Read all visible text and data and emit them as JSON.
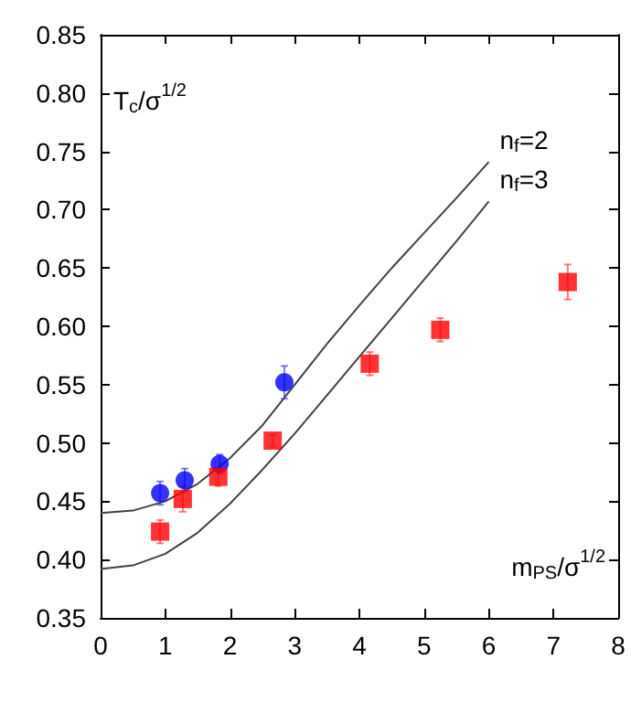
{
  "chart_data": {
    "type": "scatter",
    "xlabel": "m$_{PS}$/σ$^{1/2}$",
    "ylabel": "T$_{c}$/σ$^{1/2}$",
    "xlim": [
      0,
      8
    ],
    "xticks": [
      0,
      1,
      2,
      3,
      4,
      5,
      6,
      7,
      8
    ],
    "ylim": [
      0.35,
      0.85
    ],
    "yticks": [
      0.35,
      {
        "value": 0.4,
        "label": "0.40"
      },
      0.45,
      {
        "value": 0.5,
        "label": "0.50"
      },
      0.55,
      {
        "value": 0.6,
        "label": "0.60"
      },
      0.65,
      {
        "value": 0.7,
        "label": "0.70"
      },
      0.75,
      {
        "value": 0.8,
        "label": "0.80"
      },
      0.85
    ],
    "grid": false,
    "series": [
      {
        "type": "line",
        "name": "n$_{f}$=2",
        "color": "#404040",
        "marker": "none",
        "line_style": "solid",
        "x": [
          0,
          0.5,
          1,
          1.5,
          2,
          2.5,
          3,
          3.5,
          4,
          4.5,
          5,
          5.5,
          6
        ],
        "values": [
          0.44,
          0.442,
          0.45,
          0.465,
          0.487,
          0.515,
          0.55,
          0.585,
          0.618,
          0.65,
          0.68,
          0.71,
          0.741
        ]
      },
      {
        "type": "line",
        "name": "n$_{f}$=3",
        "color": "#404040",
        "marker": "none",
        "line_style": "solid",
        "x": [
          0,
          0.5,
          1,
          1.5,
          2,
          2.5,
          3,
          3.5,
          4,
          4.5,
          5,
          5.5,
          6
        ],
        "values": [
          0.392,
          0.395,
          0.405,
          0.423,
          0.448,
          0.477,
          0.508,
          0.541,
          0.574,
          0.607,
          0.64,
          0.673,
          0.707
        ]
      },
      {
        "color": "#0000ff",
        "marker": "circle",
        "x": [
          0.92,
          1.3,
          1.84,
          2.84
        ],
        "values": [
          0.457,
          0.468,
          0.482,
          0.552
        ],
        "errors": [
          0.01,
          0.01,
          0.008,
          0.014
        ]
      },
      {
        "color": "#ff0000",
        "marker": "square",
        "x": [
          0.92,
          1.27,
          1.82,
          2.66,
          4.16,
          5.25,
          7.22
        ],
        "values": [
          0.424,
          0.452,
          0.471,
          0.502,
          0.568,
          0.597,
          0.638
        ],
        "errors": [
          0.01,
          0.011,
          0.008,
          0.005,
          0.01,
          0.01,
          0.015
        ]
      }
    ]
  }
}
